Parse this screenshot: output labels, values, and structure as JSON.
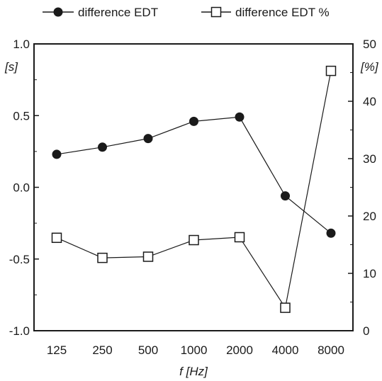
{
  "chart_data": {
    "type": "line",
    "categories": [
      "125",
      "250",
      "500",
      "1000",
      "2000",
      "4000",
      "8000"
    ],
    "xlabel": "f [Hz]",
    "y_left": {
      "label": "[s]",
      "ylim": [
        -1.0,
        1.0
      ],
      "ticks": [
        "1.0",
        "0.5",
        "0.0",
        "-0.5",
        "-1.0"
      ],
      "tick_values": [
        1.0,
        0.5,
        0.0,
        -0.5,
        -1.0
      ]
    },
    "y_right": {
      "label": "[%]",
      "ylim": [
        0,
        50
      ],
      "ticks": [
        "50",
        "40",
        "30",
        "20",
        "10",
        "0"
      ],
      "tick_values": [
        50,
        40,
        30,
        20,
        10,
        0
      ]
    },
    "series": [
      {
        "name": "difference EDT",
        "axis": "left",
        "marker": "filled-circle",
        "values": [
          0.23,
          0.28,
          0.34,
          0.46,
          0.49,
          -0.06,
          -0.32
        ]
      },
      {
        "name": "difference EDT %",
        "axis": "right",
        "marker": "open-square",
        "values": [
          16.2,
          12.7,
          12.9,
          15.8,
          16.3,
          4.0,
          45.3
        ]
      }
    ],
    "grid": false,
    "legend_position": "top",
    "colors": {
      "line": "#1a1a1a",
      "background": "#ffffff"
    }
  }
}
